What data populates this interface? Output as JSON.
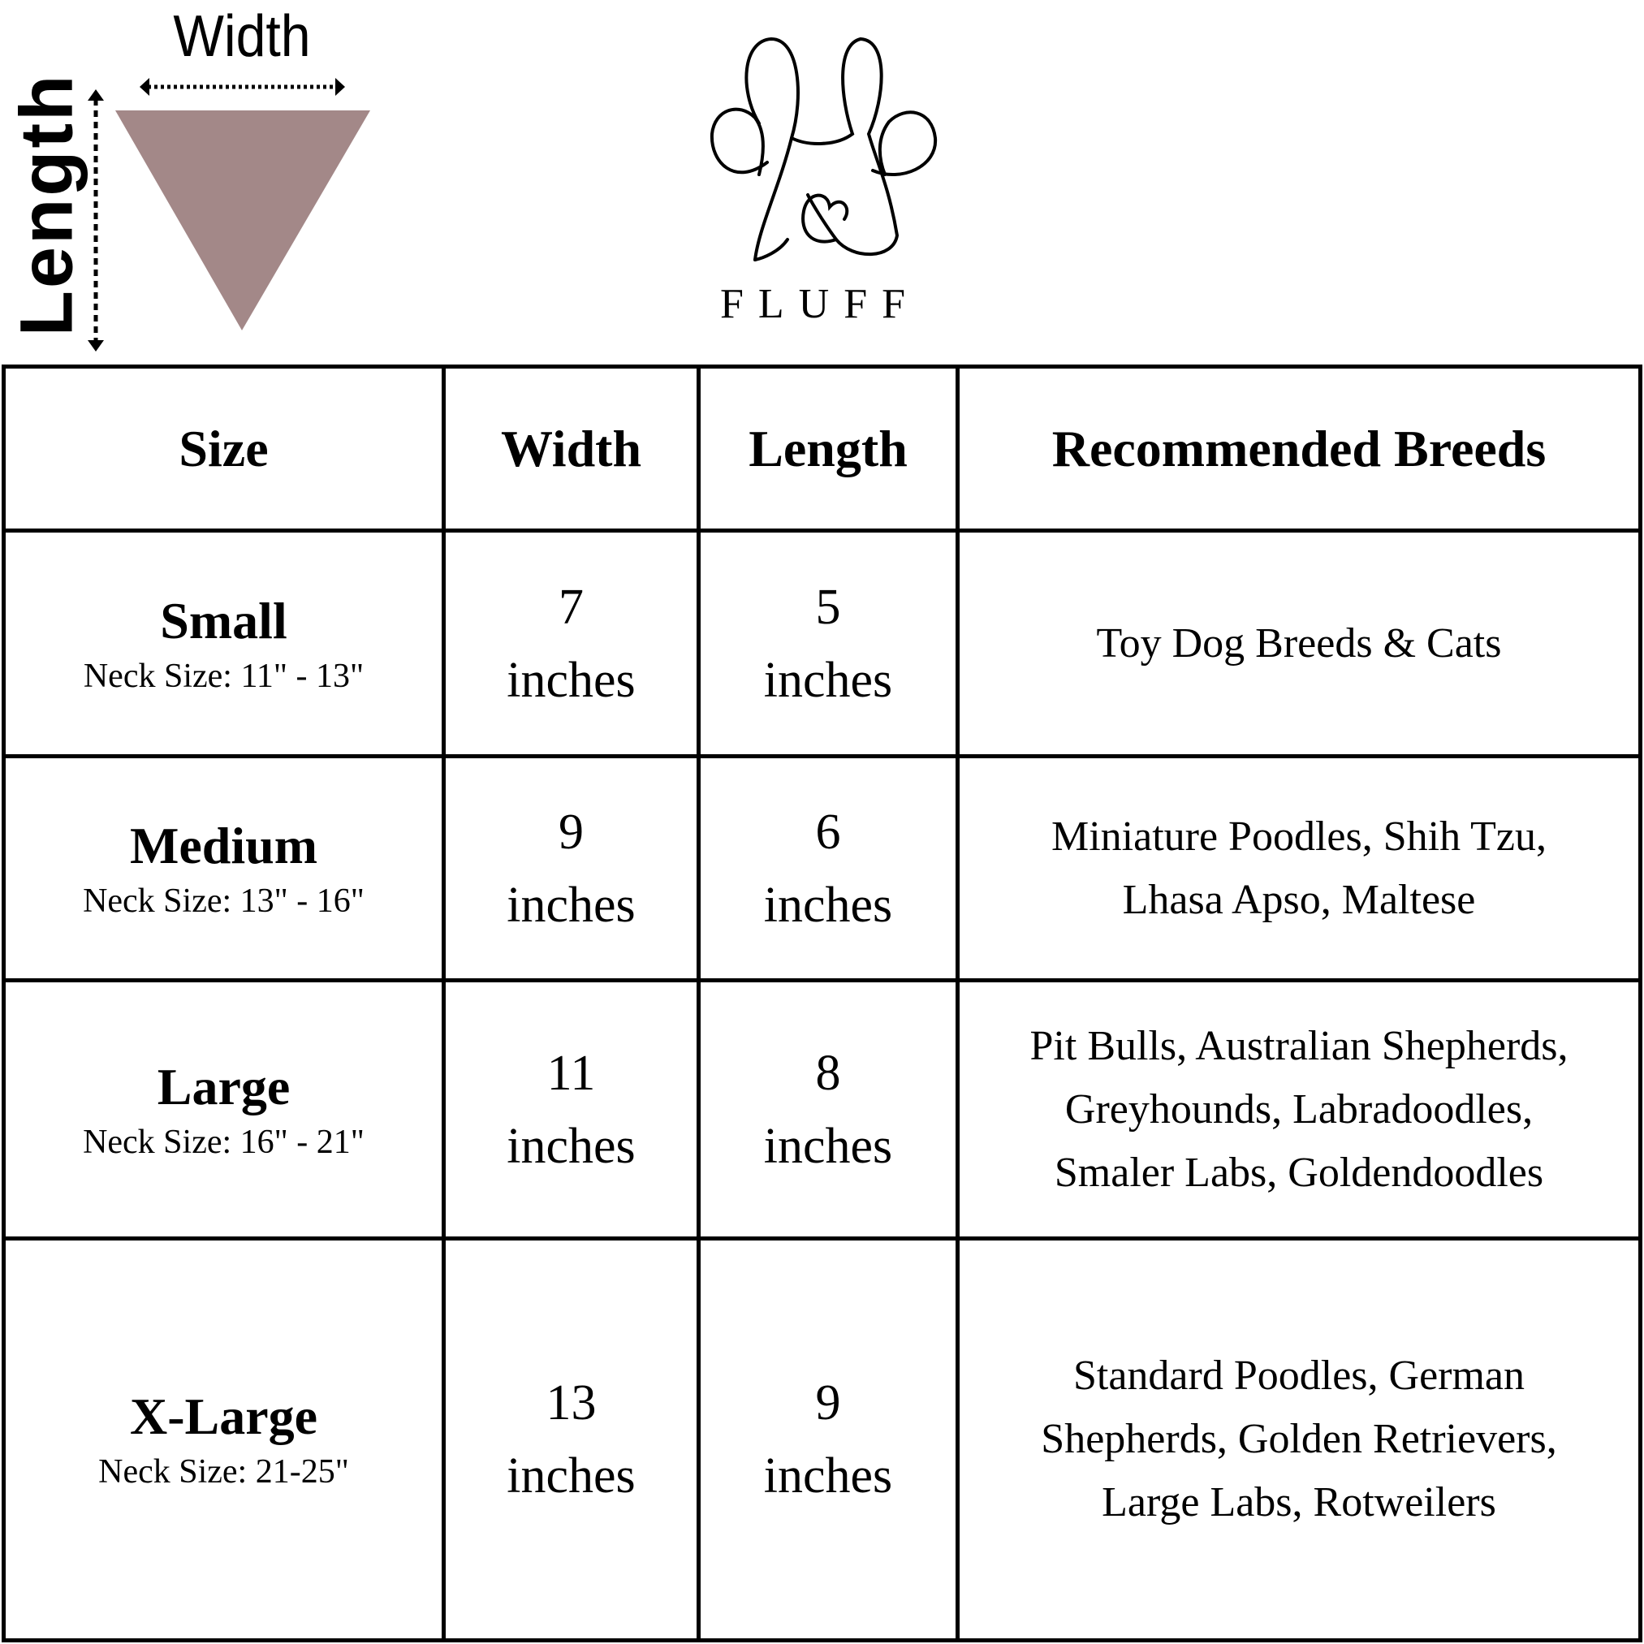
{
  "diagram": {
    "width_label": "Width",
    "length_label": "Length",
    "bandana_color": "#a38888"
  },
  "brand": {
    "name": "FLUFF",
    "icon": "paw-heart-icon"
  },
  "table": {
    "headers": [
      "Size",
      "Width",
      "Length",
      "Recommended Breeds"
    ],
    "rows": [
      {
        "size": "Small",
        "neck": "Neck Size: 11\" - 13\"",
        "width_value": "7",
        "width_unit": "inches",
        "length_value": "5",
        "length_unit": "inches",
        "breeds": [
          "Toy Dog Breeds & Cats"
        ]
      },
      {
        "size": "Medium",
        "neck": "Neck Size: 13\" - 16\"",
        "width_value": "9",
        "width_unit": "inches",
        "length_value": "6",
        "length_unit": "inches",
        "breeds": [
          "Miniature Poodles, Shih Tzu,",
          "Lhasa Apso, Maltese"
        ]
      },
      {
        "size": "Large",
        "neck": "Neck Size: 16\" - 21\"",
        "width_value": "11",
        "width_unit": "inches",
        "length_value": "8",
        "length_unit": "inches",
        "breeds": [
          "Pit Bulls, Australian Shepherds,",
          "Greyhounds, Labradoodles,",
          "Smaler Labs, Goldendoodles"
        ]
      },
      {
        "size": "X-Large",
        "neck": "Neck Size: 21-25\"",
        "width_value": "13",
        "width_unit": "inches",
        "length_value": "9",
        "length_unit": "inches",
        "breeds": [
          "Standard Poodles, German",
          "Shepherds, Golden Retrievers,",
          "Large Labs, Rotweilers"
        ]
      }
    ]
  }
}
